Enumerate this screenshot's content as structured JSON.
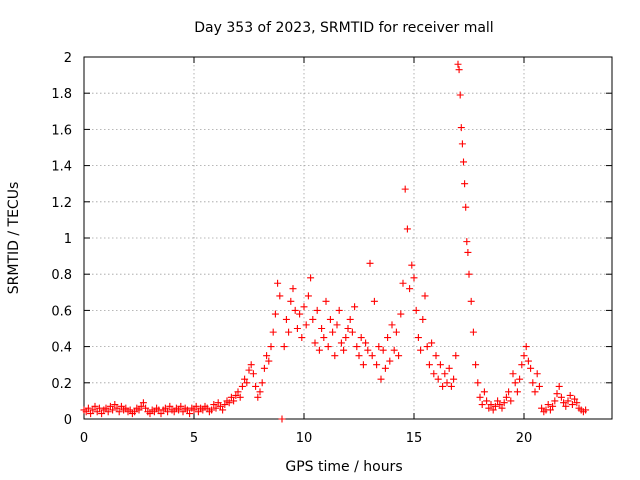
{
  "chart_data": {
    "type": "scatter",
    "title": "Day 353 of 2023, SRMTID for receiver mall",
    "xlabel": "GPS time / hours",
    "ylabel": "SRMTID / TECUs",
    "xlim": [
      0,
      24
    ],
    "ylim": [
      0,
      2
    ],
    "xticks": [
      0,
      5,
      10,
      15,
      20
    ],
    "xtick_labels": [
      "0",
      "5",
      "10",
      "15",
      "20"
    ],
    "yticks": [
      0,
      0.2,
      0.4,
      0.6,
      0.8,
      1.0,
      1.2,
      1.4,
      1.6,
      1.8,
      2.0
    ],
    "ytick_labels": [
      "0",
      "0.2",
      "0.4",
      "0.6",
      "0.8",
      "1",
      "1.2",
      "1.4",
      "1.6",
      "1.8",
      "2"
    ],
    "grid": true,
    "marker": "+",
    "series": [
      {
        "name": "SRMTID",
        "color": "#ff0000",
        "points": [
          [
            0.0,
            0.05
          ],
          [
            0.1,
            0.04
          ],
          [
            0.2,
            0.06
          ],
          [
            0.3,
            0.03
          ],
          [
            0.4,
            0.05
          ],
          [
            0.5,
            0.07
          ],
          [
            0.6,
            0.04
          ],
          [
            0.7,
            0.06
          ],
          [
            0.8,
            0.03
          ],
          [
            0.9,
            0.05
          ],
          [
            1.0,
            0.06
          ],
          [
            1.1,
            0.04
          ],
          [
            1.2,
            0.07
          ],
          [
            1.3,
            0.05
          ],
          [
            1.4,
            0.08
          ],
          [
            1.5,
            0.06
          ],
          [
            1.6,
            0.04
          ],
          [
            1.7,
            0.07
          ],
          [
            1.8,
            0.05
          ],
          [
            1.9,
            0.06
          ],
          [
            2.0,
            0.04
          ],
          [
            2.1,
            0.05
          ],
          [
            2.2,
            0.03
          ],
          [
            2.3,
            0.04
          ],
          [
            2.4,
            0.06
          ],
          [
            2.5,
            0.05
          ],
          [
            2.6,
            0.07
          ],
          [
            2.7,
            0.09
          ],
          [
            2.8,
            0.06
          ],
          [
            2.9,
            0.04
          ],
          [
            3.0,
            0.03
          ],
          [
            3.1,
            0.05
          ],
          [
            3.2,
            0.04
          ],
          [
            3.3,
            0.06
          ],
          [
            3.4,
            0.05
          ],
          [
            3.5,
            0.03
          ],
          [
            3.6,
            0.05
          ],
          [
            3.7,
            0.06
          ],
          [
            3.8,
            0.04
          ],
          [
            3.9,
            0.07
          ],
          [
            4.0,
            0.05
          ],
          [
            4.1,
            0.04
          ],
          [
            4.2,
            0.06
          ],
          [
            4.3,
            0.05
          ],
          [
            4.4,
            0.07
          ],
          [
            4.5,
            0.04
          ],
          [
            4.6,
            0.06
          ],
          [
            4.7,
            0.05
          ],
          [
            4.8,
            0.03
          ],
          [
            4.9,
            0.06
          ],
          [
            5.0,
            0.05
          ],
          [
            5.1,
            0.07
          ],
          [
            5.2,
            0.04
          ],
          [
            5.3,
            0.06
          ],
          [
            5.4,
            0.05
          ],
          [
            5.5,
            0.07
          ],
          [
            5.6,
            0.06
          ],
          [
            5.7,
            0.04
          ],
          [
            5.8,
            0.05
          ],
          [
            5.9,
            0.08
          ],
          [
            6.0,
            0.06
          ],
          [
            6.1,
            0.09
          ],
          [
            6.2,
            0.07
          ],
          [
            6.3,
            0.05
          ],
          [
            6.4,
            0.08
          ],
          [
            6.5,
            0.1
          ],
          [
            6.6,
            0.09
          ],
          [
            6.7,
            0.12
          ],
          [
            6.8,
            0.1
          ],
          [
            6.9,
            0.13
          ],
          [
            7.0,
            0.15
          ],
          [
            7.1,
            0.12
          ],
          [
            7.2,
            0.18
          ],
          [
            7.3,
            0.22
          ],
          [
            7.4,
            0.2
          ],
          [
            7.5,
            0.27
          ],
          [
            7.6,
            0.3
          ],
          [
            7.7,
            0.25
          ],
          [
            7.8,
            0.18
          ],
          [
            7.9,
            0.12
          ],
          [
            8.0,
            0.15
          ],
          [
            8.1,
            0.2
          ],
          [
            8.2,
            0.28
          ],
          [
            8.3,
            0.35
          ],
          [
            8.4,
            0.32
          ],
          [
            8.5,
            0.4
          ],
          [
            8.6,
            0.48
          ],
          [
            8.7,
            0.58
          ],
          [
            8.8,
            0.75
          ],
          [
            8.9,
            0.68
          ],
          [
            9.0,
            0.0
          ],
          [
            9.1,
            0.4
          ],
          [
            9.2,
            0.55
          ],
          [
            9.3,
            0.48
          ],
          [
            9.4,
            0.65
          ],
          [
            9.5,
            0.72
          ],
          [
            9.6,
            0.6
          ],
          [
            9.7,
            0.5
          ],
          [
            9.8,
            0.58
          ],
          [
            9.9,
            0.45
          ],
          [
            10.0,
            0.62
          ],
          [
            10.1,
            0.52
          ],
          [
            10.2,
            0.68
          ],
          [
            10.3,
            0.78
          ],
          [
            10.4,
            0.55
          ],
          [
            10.5,
            0.42
          ],
          [
            10.6,
            0.6
          ],
          [
            10.7,
            0.38
          ],
          [
            10.8,
            0.5
          ],
          [
            10.9,
            0.45
          ],
          [
            11.0,
            0.65
          ],
          [
            11.1,
            0.4
          ],
          [
            11.2,
            0.55
          ],
          [
            11.3,
            0.48
          ],
          [
            11.4,
            0.35
          ],
          [
            11.5,
            0.52
          ],
          [
            11.6,
            0.6
          ],
          [
            11.7,
            0.42
          ],
          [
            11.8,
            0.38
          ],
          [
            11.9,
            0.45
          ],
          [
            12.0,
            0.5
          ],
          [
            12.1,
            0.55
          ],
          [
            12.2,
            0.48
          ],
          [
            12.3,
            0.62
          ],
          [
            12.4,
            0.4
          ],
          [
            12.5,
            0.35
          ],
          [
            12.6,
            0.45
          ],
          [
            12.7,
            0.3
          ],
          [
            12.8,
            0.42
          ],
          [
            12.9,
            0.38
          ],
          [
            13.0,
            0.86
          ],
          [
            13.1,
            0.35
          ],
          [
            13.2,
            0.65
          ],
          [
            13.3,
            0.3
          ],
          [
            13.4,
            0.4
          ],
          [
            13.5,
            0.22
          ],
          [
            13.6,
            0.38
          ],
          [
            13.7,
            0.28
          ],
          [
            13.8,
            0.45
          ],
          [
            13.9,
            0.32
          ],
          [
            14.0,
            0.52
          ],
          [
            14.1,
            0.38
          ],
          [
            14.2,
            0.48
          ],
          [
            14.3,
            0.35
          ],
          [
            14.4,
            0.58
          ],
          [
            14.5,
            0.75
          ],
          [
            14.6,
            1.27
          ],
          [
            14.7,
            1.05
          ],
          [
            14.8,
            0.72
          ],
          [
            14.9,
            0.85
          ],
          [
            15.0,
            0.78
          ],
          [
            15.1,
            0.6
          ],
          [
            15.2,
            0.45
          ],
          [
            15.3,
            0.38
          ],
          [
            15.4,
            0.55
          ],
          [
            15.5,
            0.68
          ],
          [
            15.6,
            0.4
          ],
          [
            15.7,
            0.3
          ],
          [
            15.8,
            0.42
          ],
          [
            15.9,
            0.25
          ],
          [
            16.0,
            0.35
          ],
          [
            16.1,
            0.22
          ],
          [
            16.2,
            0.3
          ],
          [
            16.3,
            0.18
          ],
          [
            16.4,
            0.25
          ],
          [
            16.5,
            0.2
          ],
          [
            16.6,
            0.28
          ],
          [
            16.7,
            0.18
          ],
          [
            16.8,
            0.22
          ],
          [
            16.9,
            0.35
          ],
          [
            17.0,
            1.96
          ],
          [
            17.05,
            1.93
          ],
          [
            17.1,
            1.79
          ],
          [
            17.15,
            1.61
          ],
          [
            17.2,
            1.52
          ],
          [
            17.25,
            1.42
          ],
          [
            17.3,
            1.3
          ],
          [
            17.35,
            1.17
          ],
          [
            17.4,
            0.98
          ],
          [
            17.45,
            0.92
          ],
          [
            17.5,
            0.8
          ],
          [
            17.6,
            0.65
          ],
          [
            17.7,
            0.48
          ],
          [
            17.8,
            0.3
          ],
          [
            17.9,
            0.2
          ],
          [
            18.0,
            0.12
          ],
          [
            18.1,
            0.08
          ],
          [
            18.2,
            0.15
          ],
          [
            18.3,
            0.1
          ],
          [
            18.4,
            0.06
          ],
          [
            18.5,
            0.08
          ],
          [
            18.6,
            0.05
          ],
          [
            18.7,
            0.07
          ],
          [
            18.8,
            0.1
          ],
          [
            18.9,
            0.08
          ],
          [
            19.0,
            0.06
          ],
          [
            19.1,
            0.09
          ],
          [
            19.2,
            0.12
          ],
          [
            19.3,
            0.15
          ],
          [
            19.4,
            0.1
          ],
          [
            19.5,
            0.25
          ],
          [
            19.6,
            0.2
          ],
          [
            19.7,
            0.15
          ],
          [
            19.8,
            0.22
          ],
          [
            19.9,
            0.3
          ],
          [
            20.0,
            0.35
          ],
          [
            20.1,
            0.4
          ],
          [
            20.2,
            0.32
          ],
          [
            20.3,
            0.28
          ],
          [
            20.4,
            0.2
          ],
          [
            20.5,
            0.15
          ],
          [
            20.6,
            0.25
          ],
          [
            20.7,
            0.18
          ],
          [
            20.8,
            0.06
          ],
          [
            20.9,
            0.04
          ],
          [
            21.0,
            0.05
          ],
          [
            21.1,
            0.08
          ],
          [
            21.2,
            0.05
          ],
          [
            21.3,
            0.07
          ],
          [
            21.4,
            0.1
          ],
          [
            21.5,
            0.14
          ],
          [
            21.6,
            0.18
          ],
          [
            21.7,
            0.12
          ],
          [
            21.8,
            0.09
          ],
          [
            21.9,
            0.07
          ],
          [
            22.0,
            0.1
          ],
          [
            22.1,
            0.13
          ],
          [
            22.2,
            0.08
          ],
          [
            22.3,
            0.11
          ],
          [
            22.4,
            0.09
          ],
          [
            22.5,
            0.06
          ],
          [
            22.6,
            0.05
          ],
          [
            22.7,
            0.04
          ],
          [
            22.8,
            0.05
          ]
        ]
      }
    ]
  }
}
